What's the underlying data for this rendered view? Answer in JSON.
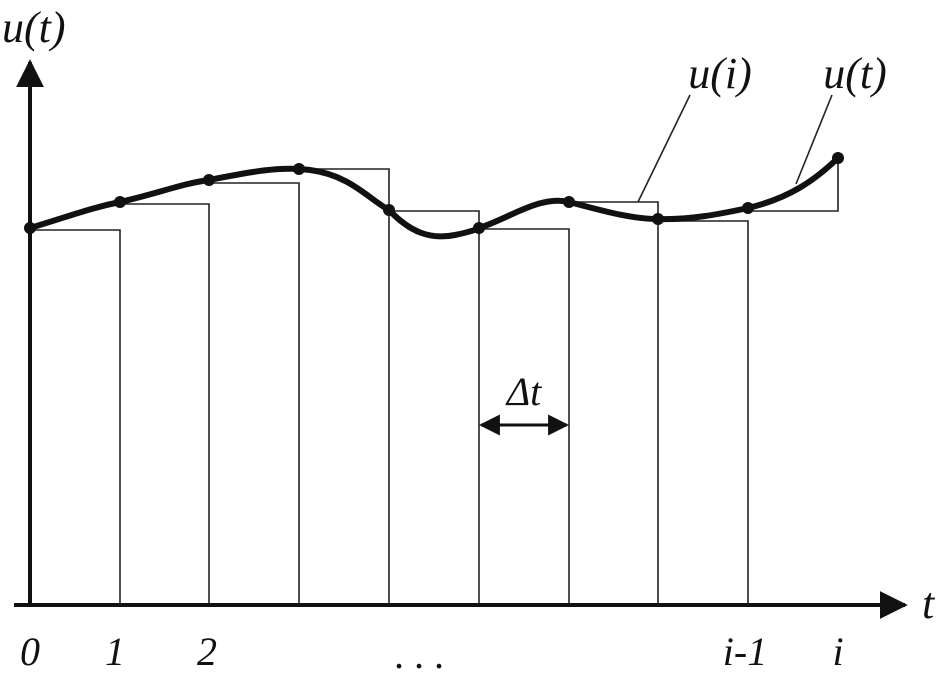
{
  "axes": {
    "y_label": "u(t)",
    "x_label": "t"
  },
  "ticks": [
    "0",
    "1",
    "2",
    ". . .",
    "i-1",
    "i"
  ],
  "annotations": {
    "step_label": "u(i)",
    "curve_label": "u(t)",
    "interval_label": "Δt"
  }
}
